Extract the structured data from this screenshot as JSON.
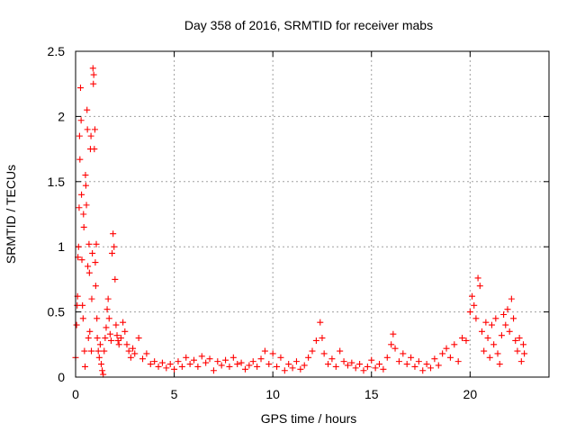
{
  "chart_data": {
    "type": "scatter",
    "title": "Day 358 of 2016, SRMTID for receiver mabs",
    "xlabel": "GPS time / hours",
    "ylabel": "SRMTID / TECUs",
    "xlim": [
      0,
      24
    ],
    "ylim": [
      0,
      2.5
    ],
    "xticks": [
      0,
      5,
      10,
      15,
      20
    ],
    "yticks": [
      0,
      0.5,
      1,
      1.5,
      2,
      2.5
    ],
    "xtick_labels": [
      "0",
      "5",
      "10",
      "15",
      "20"
    ],
    "ytick_labels": [
      "0",
      "0.5",
      "1",
      "1.5",
      "2",
      "2.5"
    ],
    "grid": true,
    "marker": "+",
    "color": "#ff0000",
    "series": [
      {
        "name": "SRMTID",
        "points": [
          [
            0.0,
            0.15
          ],
          [
            0.05,
            0.4
          ],
          [
            0.08,
            0.55
          ],
          [
            0.1,
            0.62
          ],
          [
            0.12,
            0.92
          ],
          [
            0.15,
            1.0
          ],
          [
            0.18,
            1.3
          ],
          [
            0.2,
            1.85
          ],
          [
            0.22,
            1.67
          ],
          [
            0.25,
            2.22
          ],
          [
            0.28,
            1.97
          ],
          [
            0.3,
            1.4
          ],
          [
            0.32,
            0.9
          ],
          [
            0.35,
            0.55
          ],
          [
            0.38,
            0.45
          ],
          [
            0.4,
            1.25
          ],
          [
            0.42,
            1.15
          ],
          [
            0.45,
            0.2
          ],
          [
            0.48,
            0.08
          ],
          [
            0.5,
            1.55
          ],
          [
            0.52,
            1.47
          ],
          [
            0.55,
            1.32
          ],
          [
            0.58,
            2.05
          ],
          [
            0.6,
            1.9
          ],
          [
            0.62,
            0.85
          ],
          [
            0.65,
            0.3
          ],
          [
            0.68,
            1.02
          ],
          [
            0.7,
            0.8
          ],
          [
            0.72,
            0.35
          ],
          [
            0.75,
            1.75
          ],
          [
            0.78,
            1.85
          ],
          [
            0.8,
            0.2
          ],
          [
            0.82,
            0.6
          ],
          [
            0.85,
            0.95
          ],
          [
            0.88,
            2.37
          ],
          [
            0.9,
            2.25
          ],
          [
            0.92,
            2.32
          ],
          [
            0.95,
            1.75
          ],
          [
            0.98,
            1.9
          ],
          [
            1.0,
            0.88
          ],
          [
            1.02,
            0.7
          ],
          [
            1.05,
            1.02
          ],
          [
            1.08,
            0.45
          ],
          [
            1.1,
            0.3
          ],
          [
            1.15,
            0.2
          ],
          [
            1.2,
            0.15
          ],
          [
            1.25,
            0.25
          ],
          [
            1.3,
            0.1
          ],
          [
            1.35,
            0.05
          ],
          [
            1.4,
            0.02
          ],
          [
            1.45,
            0.2
          ],
          [
            1.5,
            0.3
          ],
          [
            1.55,
            0.38
          ],
          [
            1.6,
            0.52
          ],
          [
            1.65,
            0.6
          ],
          [
            1.7,
            0.45
          ],
          [
            1.75,
            0.33
          ],
          [
            1.8,
            0.28
          ],
          [
            1.85,
            0.95
          ],
          [
            1.9,
            1.1
          ],
          [
            1.95,
            1.0
          ],
          [
            2.0,
            0.75
          ],
          [
            2.05,
            0.4
          ],
          [
            2.1,
            0.32
          ],
          [
            2.15,
            0.28
          ],
          [
            2.2,
            0.25
          ],
          [
            2.3,
            0.3
          ],
          [
            2.4,
            0.42
          ],
          [
            2.5,
            0.35
          ],
          [
            2.6,
            0.25
          ],
          [
            2.7,
            0.2
          ],
          [
            2.8,
            0.15
          ],
          [
            2.9,
            0.22
          ],
          [
            3.0,
            0.18
          ],
          [
            3.2,
            0.3
          ],
          [
            3.4,
            0.14
          ],
          [
            3.6,
            0.18
          ],
          [
            3.8,
            0.1
          ],
          [
            4.0,
            0.12
          ],
          [
            4.2,
            0.08
          ],
          [
            4.4,
            0.11
          ],
          [
            4.6,
            0.07
          ],
          [
            4.8,
            0.1
          ],
          [
            5.0,
            0.06
          ],
          [
            5.2,
            0.12
          ],
          [
            5.4,
            0.08
          ],
          [
            5.6,
            0.15
          ],
          [
            5.8,
            0.1
          ],
          [
            6.0,
            0.13
          ],
          [
            6.2,
            0.08
          ],
          [
            6.4,
            0.16
          ],
          [
            6.6,
            0.11
          ],
          [
            6.8,
            0.14
          ],
          [
            7.0,
            0.05
          ],
          [
            7.2,
            0.12
          ],
          [
            7.4,
            0.09
          ],
          [
            7.6,
            0.13
          ],
          [
            7.8,
            0.08
          ],
          [
            8.0,
            0.15
          ],
          [
            8.2,
            0.1
          ],
          [
            8.4,
            0.11
          ],
          [
            8.6,
            0.06
          ],
          [
            8.8,
            0.09
          ],
          [
            9.0,
            0.12
          ],
          [
            9.2,
            0.08
          ],
          [
            9.4,
            0.14
          ],
          [
            9.6,
            0.2
          ],
          [
            9.8,
            0.1
          ],
          [
            10.0,
            0.18
          ],
          [
            10.2,
            0.08
          ],
          [
            10.4,
            0.15
          ],
          [
            10.6,
            0.05
          ],
          [
            10.8,
            0.1
          ],
          [
            11.0,
            0.07
          ],
          [
            11.2,
            0.12
          ],
          [
            11.4,
            0.06
          ],
          [
            11.6,
            0.09
          ],
          [
            11.8,
            0.15
          ],
          [
            12.0,
            0.2
          ],
          [
            12.2,
            0.28
          ],
          [
            12.4,
            0.42
          ],
          [
            12.5,
            0.3
          ],
          [
            12.6,
            0.18
          ],
          [
            12.8,
            0.1
          ],
          [
            13.0,
            0.14
          ],
          [
            13.2,
            0.08
          ],
          [
            13.4,
            0.2
          ],
          [
            13.6,
            0.12
          ],
          [
            13.8,
            0.09
          ],
          [
            14.0,
            0.11
          ],
          [
            14.2,
            0.07
          ],
          [
            14.4,
            0.1
          ],
          [
            14.6,
            0.05
          ],
          [
            14.8,
            0.08
          ],
          [
            15.0,
            0.13
          ],
          [
            15.2,
            0.07
          ],
          [
            15.4,
            0.1
          ],
          [
            15.6,
            0.06
          ],
          [
            15.8,
            0.15
          ],
          [
            16.0,
            0.25
          ],
          [
            16.1,
            0.33
          ],
          [
            16.2,
            0.22
          ],
          [
            16.4,
            0.12
          ],
          [
            16.6,
            0.18
          ],
          [
            16.8,
            0.1
          ],
          [
            17.0,
            0.15
          ],
          [
            17.2,
            0.08
          ],
          [
            17.4,
            0.12
          ],
          [
            17.6,
            0.05
          ],
          [
            17.8,
            0.1
          ],
          [
            18.0,
            0.07
          ],
          [
            18.2,
            0.14
          ],
          [
            18.4,
            0.09
          ],
          [
            18.6,
            0.18
          ],
          [
            18.8,
            0.22
          ],
          [
            19.0,
            0.15
          ],
          [
            19.2,
            0.25
          ],
          [
            19.4,
            0.12
          ],
          [
            19.6,
            0.3
          ],
          [
            19.8,
            0.28
          ],
          [
            20.0,
            0.5
          ],
          [
            20.1,
            0.62
          ],
          [
            20.2,
            0.55
          ],
          [
            20.3,
            0.45
          ],
          [
            20.4,
            0.76
          ],
          [
            20.5,
            0.7
          ],
          [
            20.6,
            0.35
          ],
          [
            20.7,
            0.2
          ],
          [
            20.8,
            0.42
          ],
          [
            20.9,
            0.3
          ],
          [
            21.0,
            0.15
          ],
          [
            21.1,
            0.4
          ],
          [
            21.2,
            0.25
          ],
          [
            21.3,
            0.45
          ],
          [
            21.4,
            0.18
          ],
          [
            21.5,
            0.1
          ],
          [
            21.6,
            0.32
          ],
          [
            21.7,
            0.48
          ],
          [
            21.8,
            0.4
          ],
          [
            21.9,
            0.52
          ],
          [
            22.0,
            0.35
          ],
          [
            22.1,
            0.6
          ],
          [
            22.2,
            0.45
          ],
          [
            22.3,
            0.28
          ],
          [
            22.4,
            0.2
          ],
          [
            22.5,
            0.3
          ],
          [
            22.6,
            0.12
          ],
          [
            22.7,
            0.25
          ],
          [
            22.75,
            0.18
          ]
        ]
      }
    ]
  }
}
